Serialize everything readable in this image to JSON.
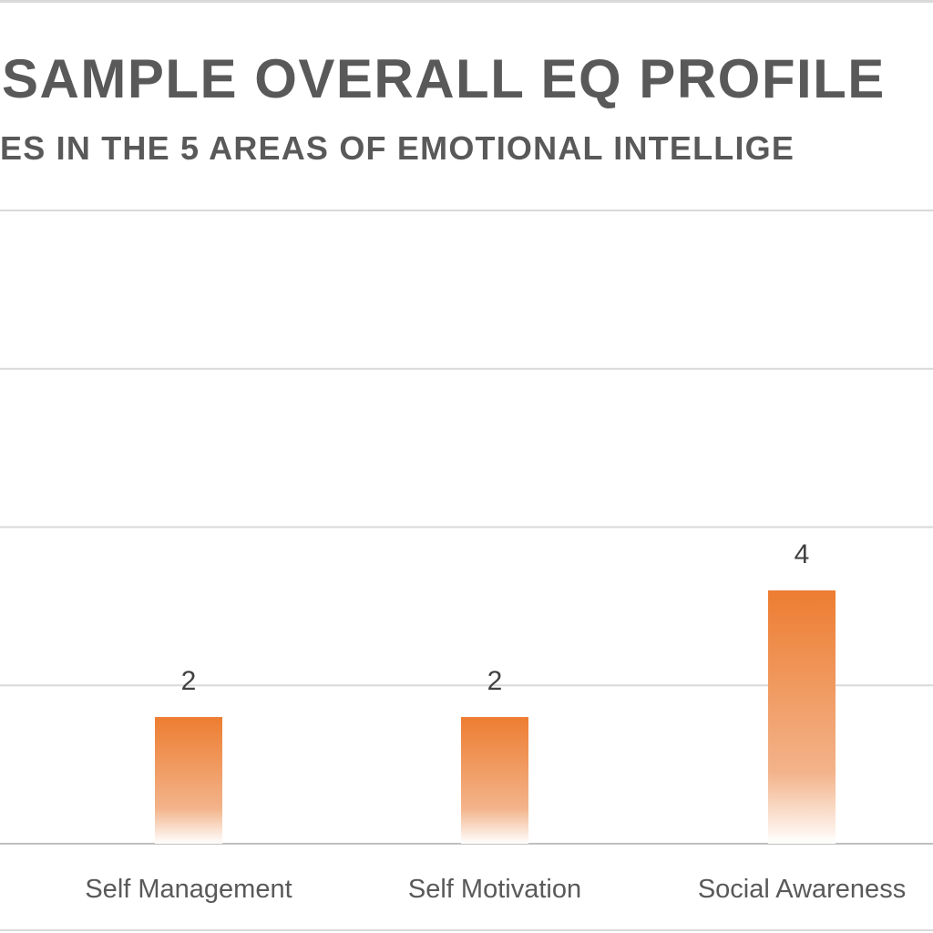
{
  "chart_data": {
    "type": "bar",
    "title": "SAMPLE OVERALL EQ PROFILE",
    "subtitle": "ES IN THE 5 AREAS OF EMOTIONAL INTELLIGE",
    "categories": [
      "Self Management",
      "Self Motivation",
      "Social Awareness"
    ],
    "values": [
      2,
      2,
      4
    ],
    "data_labels": [
      "2",
      "2",
      "4"
    ],
    "ylim": [
      0,
      10
    ],
    "grid": true,
    "legend": "none",
    "bar_color_top": "#ED7D31",
    "bar_color_bottom": "#FFFFFF",
    "gridline_color": "#D9D9D9"
  }
}
